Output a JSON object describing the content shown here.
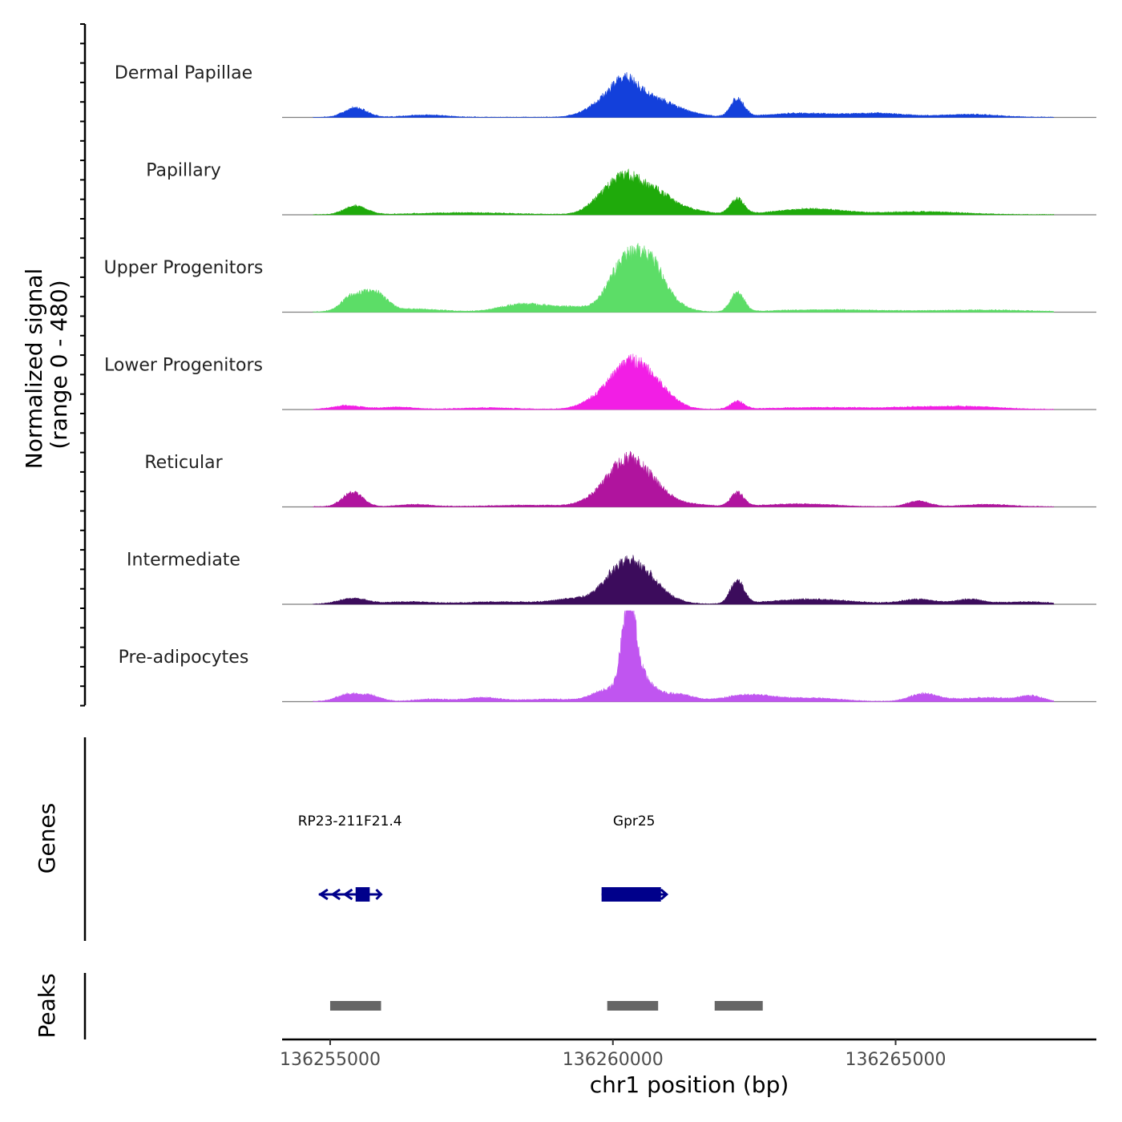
{
  "chart_data": {
    "type": "area",
    "title": "",
    "xlabel": "chr1 position (bp)",
    "ylabel_line1": "Normalized signal",
    "ylabel_line2": "(range 0 - 480)",
    "ylim": [
      0,
      480
    ],
    "xlim": [
      136254150,
      136268550
    ],
    "x_ticks": [
      136255000,
      136260000,
      136265000
    ],
    "x_tick_labels": [
      "136255000",
      "136260000",
      "136265000"
    ],
    "data_start": 136254700,
    "data_end": 136267800,
    "series": [
      {
        "name": "Dermal Papillae",
        "color": "#1340db",
        "peaks": [
          [
            136255450,
            50,
            200
          ],
          [
            136256700,
            12,
            350
          ],
          [
            136259800,
            60,
            300
          ],
          [
            136260200,
            150,
            250
          ],
          [
            136260700,
            90,
            350
          ],
          [
            136261300,
            18,
            300
          ],
          [
            136262200,
            95,
            120
          ],
          [
            136263300,
            20,
            600
          ],
          [
            136264700,
            20,
            500
          ],
          [
            136266300,
            15,
            500
          ]
        ]
      },
      {
        "name": "Papillary",
        "color": "#1faa0b",
        "peaks": [
          [
            136255450,
            45,
            200
          ],
          [
            136257400,
            10,
            800
          ],
          [
            136259800,
            70,
            250
          ],
          [
            136260200,
            160,
            250
          ],
          [
            136260700,
            120,
            300
          ],
          [
            136261300,
            25,
            350
          ],
          [
            136262200,
            80,
            120
          ],
          [
            136263500,
            30,
            600
          ],
          [
            136265500,
            15,
            700
          ]
        ]
      },
      {
        "name": "Upper Progenitors",
        "color": "#5cdd67",
        "peaks": [
          [
            136255400,
            80,
            200
          ],
          [
            136255800,
            90,
            200
          ],
          [
            136256500,
            15,
            500
          ],
          [
            136258400,
            40,
            400
          ],
          [
            136259300,
            25,
            400
          ],
          [
            136260150,
            220,
            250
          ],
          [
            136260600,
            230,
            250
          ],
          [
            136260900,
            60,
            300
          ],
          [
            136262200,
            100,
            120
          ],
          [
            136263800,
            12,
            900
          ],
          [
            136266500,
            10,
            900
          ]
        ]
      },
      {
        "name": "Lower Progenitors",
        "color": "#f21ee5",
        "peaks": [
          [
            136255300,
            20,
            250
          ],
          [
            136256200,
            12,
            300
          ],
          [
            136257800,
            8,
            500
          ],
          [
            136259700,
            30,
            300
          ],
          [
            136260300,
            230,
            350
          ],
          [
            136260800,
            70,
            300
          ],
          [
            136262200,
            40,
            120
          ],
          [
            136263700,
            10,
            900
          ],
          [
            136265600,
            12,
            600
          ],
          [
            136266500,
            10,
            500
          ]
        ]
      },
      {
        "name": "Reticular",
        "color": "#b0149e",
        "peaks": [
          [
            136255400,
            75,
            180
          ],
          [
            136256500,
            12,
            300
          ],
          [
            136258500,
            8,
            700
          ],
          [
            136259800,
            50,
            300
          ],
          [
            136260250,
            210,
            300
          ],
          [
            136260700,
            90,
            300
          ],
          [
            136261400,
            12,
            300
          ],
          [
            136262200,
            70,
            120
          ],
          [
            136263300,
            15,
            600
          ],
          [
            136265400,
            30,
            200
          ],
          [
            136266600,
            12,
            400
          ]
        ]
      },
      {
        "name": "Intermediate",
        "color": "#3c0c5c",
        "peaks": [
          [
            136255400,
            30,
            250
          ],
          [
            136256400,
            12,
            400
          ],
          [
            136258000,
            12,
            600
          ],
          [
            136259400,
            30,
            400
          ],
          [
            136260050,
            140,
            250
          ],
          [
            136260450,
            150,
            250
          ],
          [
            136260800,
            50,
            300
          ],
          [
            136262200,
            120,
            120
          ],
          [
            136263500,
            25,
            700
          ],
          [
            136265400,
            25,
            300
          ],
          [
            136266300,
            25,
            250
          ],
          [
            136267300,
            12,
            400
          ]
        ]
      },
      {
        "name": "Pre-adipocytes",
        "color": "#c055f0",
        "peaks": [
          [
            136255300,
            35,
            200
          ],
          [
            136255700,
            30,
            200
          ],
          [
            136256800,
            12,
            300
          ],
          [
            136257700,
            20,
            300
          ],
          [
            136258900,
            12,
            500
          ],
          [
            136259900,
            60,
            250
          ],
          [
            136260280,
            470,
            120
          ],
          [
            136260500,
            120,
            200
          ],
          [
            136261100,
            40,
            300
          ],
          [
            136262400,
            35,
            400
          ],
          [
            136263500,
            18,
            500
          ],
          [
            136265500,
            40,
            250
          ],
          [
            136266600,
            20,
            500
          ],
          [
            136267400,
            25,
            200
          ]
        ]
      }
    ],
    "genes": {
      "title": "Genes",
      "color": "#00008b",
      "items": [
        {
          "name": "RP23-211F21.4",
          "start": 136254800,
          "end": 136255900,
          "exon_start": 136255450,
          "exon_end": 136255700,
          "strand": "-"
        },
        {
          "name": "Gpr25",
          "start": 136259800,
          "end": 136260950,
          "exon_start": 136259800,
          "exon_end": 136260850,
          "strand": "+"
        }
      ]
    },
    "peaks_track": {
      "title": "Peaks",
      "color": "#666666",
      "regions": [
        [
          136255000,
          136255900
        ],
        [
          136259900,
          136260800
        ],
        [
          136261800,
          136262650
        ]
      ]
    }
  }
}
